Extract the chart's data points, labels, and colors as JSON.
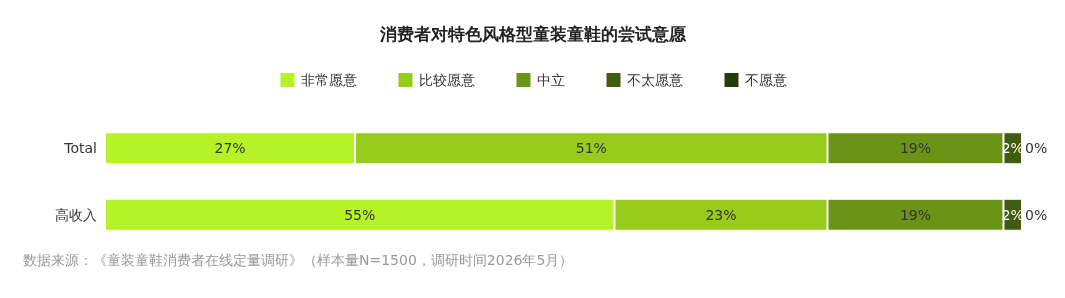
{
  "chart_data": {
    "type": "bar",
    "orientation": "horizontal",
    "stacked": true,
    "title": "消费者对特色风格型童装童鞋的尝试意愿",
    "categories": [
      "Total",
      "高收入"
    ],
    "series": [
      {
        "name": "非常愿意",
        "color": "#b5f227",
        "values": [
          27,
          55
        ],
        "value_labels": [
          "27%",
          "55%"
        ]
      },
      {
        "name": "比较愿意",
        "color": "#97cc1d",
        "values": [
          51,
          23
        ],
        "value_labels": [
          "51%",
          "23%"
        ]
      },
      {
        "name": "中立",
        "color": "#6b9417",
        "values": [
          19,
          19
        ],
        "value_labels": [
          "19%",
          "19%"
        ]
      },
      {
        "name": "不太愿意",
        "color": "#415c10",
        "values": [
          2,
          2
        ],
        "value_labels": [
          "2%",
          "2%"
        ]
      },
      {
        "name": "不愿意",
        "color": "#2a3a0a",
        "values": [
          0,
          0
        ],
        "value_labels": [
          "0%",
          "0%"
        ]
      }
    ],
    "legend": "top",
    "grid": false,
    "annotations": [
      "数据来源：《童装童鞋消费者在线定量调研》（样本量N=1500，调研时间2026年5月）"
    ]
  }
}
